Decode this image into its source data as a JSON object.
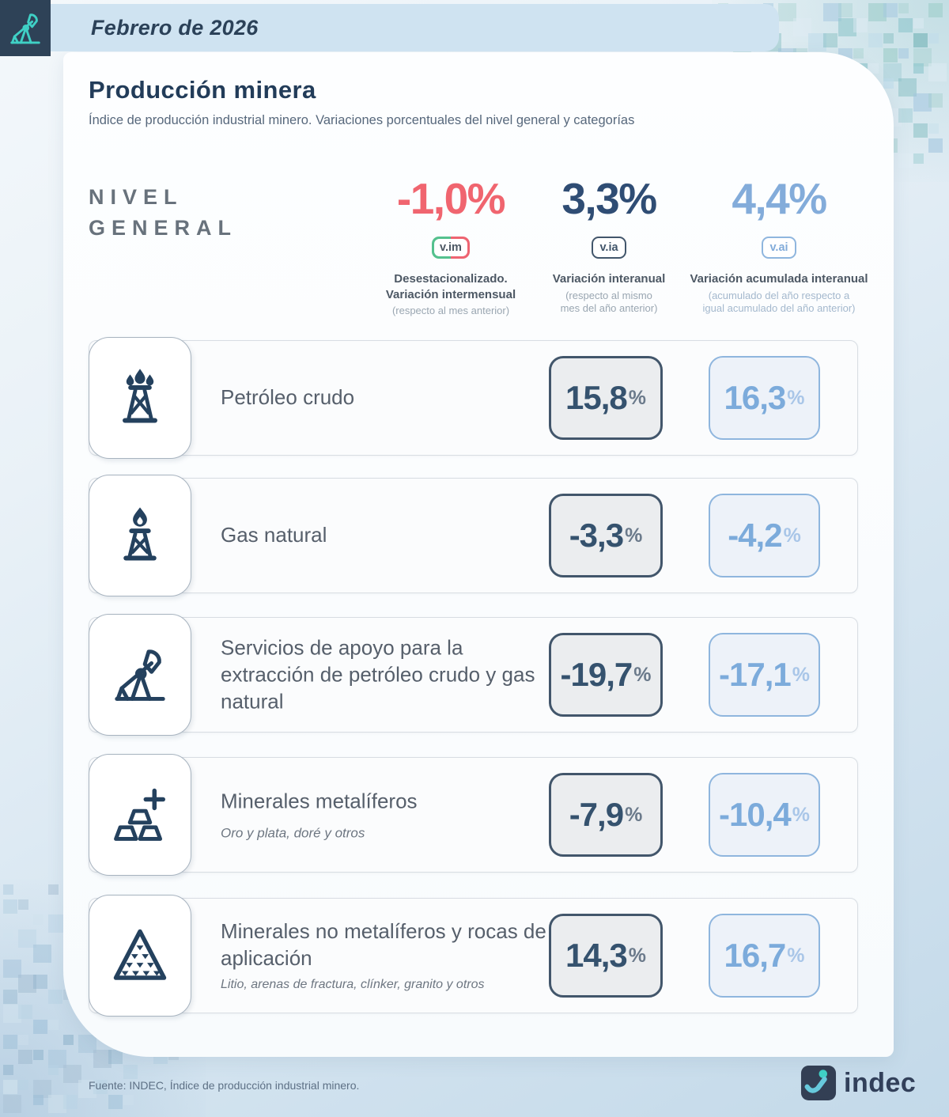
{
  "header": {
    "period": "Febrero de 2026"
  },
  "title": "Producción minera",
  "subtitle": "Índice de producción industrial minero. Variaciones porcentuales del nivel general y categorías",
  "percent_sign": "%",
  "nivel_general": {
    "label": "NIVEL\nGENERAL",
    "stats": [
      {
        "value": "-1,0%",
        "badge": "v.im",
        "description": "Desestacionalizado.\nVariación intermensual",
        "note": "(respecto al mes anterior)",
        "color": "#f0656f"
      },
      {
        "value": "3,3%",
        "badge": "v.ia",
        "description": "Variación interanual",
        "note": "(respecto al mismo\nmes del año anterior)",
        "color": "#2f4d74"
      },
      {
        "value": "4,4%",
        "badge": "v.ai",
        "description": "Variación acumulada interanual",
        "note": "(acumulado del año respecto a\nigual acumulado del año anterior)",
        "color": "#83acda"
      }
    ]
  },
  "categories": [
    {
      "icon": "oil-derrick-icon",
      "name": "Petróleo crudo",
      "detail": "",
      "variacion_interanual": "15,8",
      "variacion_acumulada": "16,3"
    },
    {
      "icon": "gas-flare-icon",
      "name": "Gas natural",
      "detail": "",
      "variacion_interanual": "-3,3",
      "variacion_acumulada": "-4,2"
    },
    {
      "icon": "pumpjack-icon",
      "name": "Servicios de apoyo para la extracción de petróleo crudo y gas natural",
      "detail": "",
      "variacion_interanual": "-19,7",
      "variacion_acumulada": "-17,1"
    },
    {
      "icon": "gold-bars-icon",
      "name": "Minerales metalíferos",
      "detail": "Oro y plata, doré y otros",
      "variacion_interanual": "-7,9",
      "variacion_acumulada": "-10,4"
    },
    {
      "icon": "mineral-mound-icon",
      "name": "Minerales no metalíferos y rocas de aplicación",
      "detail": "Litio, arenas de fractura, clínker, granito y otros",
      "variacion_interanual": "14,3",
      "variacion_acumulada": "16,7"
    }
  ],
  "footer": {
    "source": "Fuente: INDEC, Índice de producción industrial minero.",
    "brand": "indec"
  },
  "colors": {
    "accent_red": "#f0656f",
    "accent_navy": "#2f4d74",
    "accent_blue": "#83acda",
    "icon_navy": "#24415e",
    "teal": "#3fd0c5",
    "header_square": "#2e4257",
    "banner": "#cfe3f1"
  },
  "chart_data": {
    "type": "table",
    "title": "Producción minera — Índice de producción industrial minero",
    "period": "Febrero de 2026",
    "nivel_general": {
      "v_im_desestacionalizado_pct": -1.0,
      "v_ia_interanual_pct": 3.3,
      "v_ai_acumulada_pct": 4.4
    },
    "categories": [
      "Petróleo crudo",
      "Gas natural",
      "Servicios de apoyo para la extracción de petróleo crudo y gas natural",
      "Minerales metalíferos",
      "Minerales no metalíferos y rocas de aplicación"
    ],
    "series": [
      {
        "name": "Variación interanual (v.ia) %",
        "values": [
          15.8,
          -3.3,
          -19.7,
          -7.9,
          14.3
        ]
      },
      {
        "name": "Variación acumulada interanual (v.ai) %",
        "values": [
          16.3,
          -4.2,
          -17.1,
          -10.4,
          16.7
        ]
      }
    ]
  }
}
